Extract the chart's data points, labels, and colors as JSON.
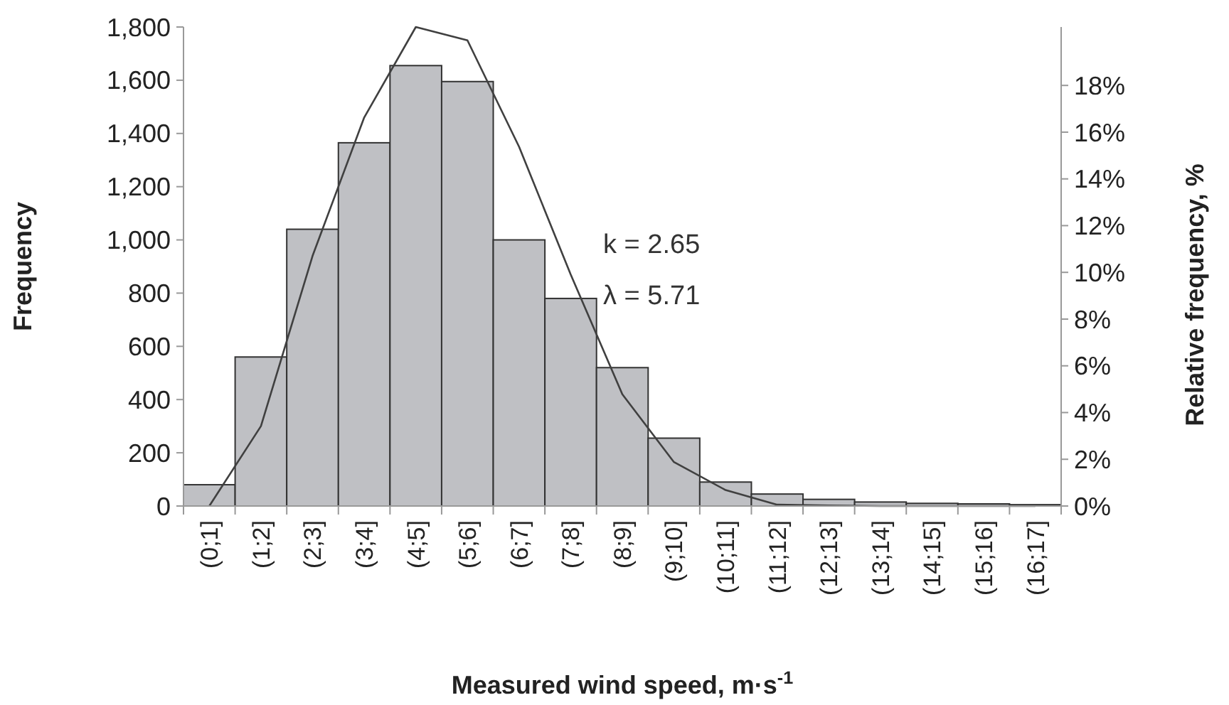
{
  "chart_data": {
    "type": "bar",
    "xlabel": "Measured wind speed, m·s$^{-1}$",
    "ylabel": "Frequency",
    "y2label": "Relative frequency, %",
    "categories": [
      "(0;1]",
      "(1;2]",
      "(2;3]",
      "(3;4]",
      "(4;5]",
      "(5;6]",
      "(6;7]",
      "(7;8]",
      "(8;9]",
      "(9;10]",
      "(10;11]",
      "(11;12]",
      "(12;13]",
      "(13;14]",
      "(14;15]",
      "(15;16]",
      "(16;17]"
    ],
    "series": [
      {
        "color": "#bfc0c4",
        "values": [
          80,
          560,
          1040,
          1365,
          1655,
          1595,
          1000,
          780,
          520,
          255,
          90,
          45,
          25,
          15,
          10,
          8,
          5
        ]
      },
      {
        "type": "line",
        "color": "#404040",
        "values": [
          0,
          300,
          940,
          1460,
          1800,
          1750,
          1350,
          870,
          420,
          165,
          60,
          5,
          2,
          0,
          0,
          0,
          0
        ]
      }
    ],
    "ylim": [
      0,
      1800
    ],
    "yticks": [
      0,
      {
        "value": 200,
        "label": "200"
      },
      {
        "value": 400,
        "label": "400"
      },
      {
        "value": 600,
        "label": "600"
      },
      {
        "value": 800,
        "label": "800"
      },
      {
        "value": 1000,
        "label": "1,000"
      },
      {
        "value": 1200,
        "label": "1,200"
      },
      {
        "value": 1400,
        "label": "1,400"
      },
      {
        "value": 1600,
        "label": "1,600"
      },
      {
        "value": 1800,
        "label": "1,800"
      }
    ],
    "y2lim": [
      0,
      20.5
    ],
    "y2ticks": [
      {
        "value": 0,
        "label": "0%"
      },
      {
        "value": 2,
        "label": "2%"
      },
      {
        "value": 4,
        "label": "4%"
      },
      {
        "value": 6,
        "label": "6%"
      },
      {
        "value": 8,
        "label": "8%"
      },
      {
        "value": 10,
        "label": "10%"
      },
      {
        "value": 12,
        "label": "12%"
      },
      {
        "value": 14,
        "label": "14%"
      },
      {
        "value": 16,
        "label": "16%"
      },
      {
        "value": 18,
        "label": "18%"
      }
    ],
    "annotations": [
      "k = 2.65",
      "λ = 5.71"
    ],
    "grid": false
  }
}
